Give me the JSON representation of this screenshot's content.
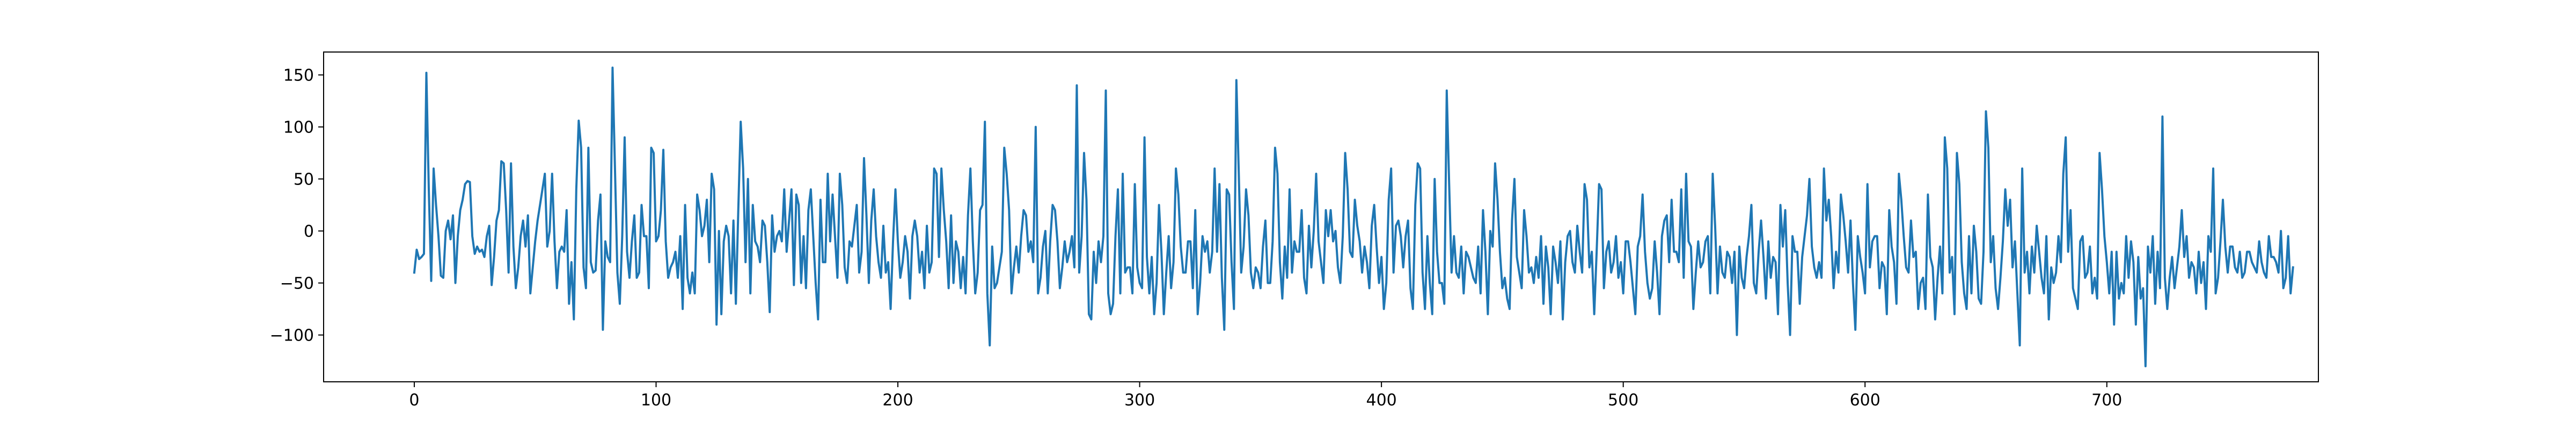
{
  "chart_data": {
    "type": "line",
    "title": "",
    "xlabel": "",
    "ylabel": "",
    "xlim": [
      -37.5,
      787.5
    ],
    "ylim": [
      -145,
      172
    ],
    "xticks": [
      0,
      100,
      200,
      300,
      400,
      500,
      600,
      700
    ],
    "yticks": [
      -100,
      -50,
      0,
      50,
      100,
      150
    ],
    "grid": false,
    "legend": "none",
    "colors": {
      "line": "#1f77b4",
      "axes": "#000000",
      "background": "#ffffff"
    },
    "series": [
      {
        "x_start": 0,
        "x_step": 1,
        "values": [
          -40,
          -18,
          -27,
          -25,
          -22,
          152,
          40,
          -48,
          60,
          25,
          -5,
          -43,
          -45,
          0,
          10,
          -8,
          15,
          -50,
          -5,
          20,
          30,
          45,
          48,
          47,
          -5,
          -22,
          -15,
          -20,
          -18,
          -25,
          -5,
          5,
          -52,
          -25,
          10,
          20,
          67,
          65,
          20,
          -40,
          65,
          -15,
          -55,
          -35,
          -5,
          10,
          -15,
          15,
          -60,
          -35,
          -10,
          10,
          25,
          40,
          55,
          -15,
          0,
          55,
          -10,
          -55,
          -20,
          -15,
          -20,
          20,
          -70,
          -30,
          -85,
          40,
          106,
          80,
          -35,
          -55,
          80,
          -30,
          -40,
          -38,
          10,
          35,
          -95,
          -10,
          -25,
          -30,
          157,
          60,
          -40,
          -70,
          -5,
          90,
          -20,
          -45,
          -10,
          15,
          -45,
          -40,
          25,
          -5,
          -5,
          -55,
          80,
          75,
          -10,
          -5,
          20,
          78,
          -10,
          -45,
          -35,
          -30,
          -20,
          -45,
          -5,
          -75,
          25,
          -45,
          -60,
          -40,
          -60,
          35,
          20,
          -5,
          5,
          30,
          -30,
          55,
          40,
          -90,
          0,
          -80,
          -10,
          5,
          -5,
          -60,
          10,
          -70,
          20,
          105,
          60,
          -30,
          50,
          -60,
          25,
          -10,
          -15,
          -30,
          10,
          5,
          -30,
          -78,
          15,
          -20,
          -5,
          0,
          -10,
          40,
          -20,
          10,
          40,
          -52,
          35,
          25,
          -50,
          -5,
          -55,
          20,
          40,
          -5,
          -50,
          -85,
          30,
          -30,
          -30,
          55,
          -10,
          35,
          -5,
          -45,
          55,
          25,
          -35,
          -50,
          -10,
          -15,
          5,
          25,
          -40,
          -20,
          70,
          15,
          -50,
          10,
          40,
          -5,
          -30,
          -45,
          5,
          -40,
          -30,
          -75,
          -10,
          40,
          -10,
          -45,
          -30,
          -5,
          -20,
          -65,
          -5,
          10,
          -5,
          -40,
          -20,
          -55,
          5,
          -40,
          -30,
          60,
          55,
          -25,
          60,
          20,
          -10,
          -55,
          15,
          -50,
          -10,
          -20,
          -55,
          -25,
          -60,
          15,
          60,
          -10,
          -60,
          -40,
          20,
          25,
          105,
          -60,
          -110,
          -15,
          -55,
          -50,
          -35,
          -20,
          80,
          55,
          20,
          -60,
          -35,
          -15,
          -40,
          -5,
          20,
          15,
          -20,
          -10,
          -30,
          100,
          -60,
          -45,
          -15,
          0,
          -60,
          -10,
          25,
          20,
          -10,
          -55,
          -35,
          -10,
          -30,
          -20,
          -5,
          -35,
          140,
          -40,
          -5,
          75,
          30,
          -80,
          -85,
          -20,
          -50,
          -10,
          -30,
          -5,
          135,
          -60,
          -80,
          -70,
          -5,
          40,
          -60,
          55,
          -40,
          -35,
          -35,
          -60,
          45,
          -35,
          -50,
          -55,
          90,
          -25,
          -60,
          -25,
          -80,
          -50,
          25,
          -20,
          -80,
          -40,
          -5,
          -55,
          -30,
          60,
          35,
          -15,
          -40,
          -40,
          -10,
          -10,
          -55,
          20,
          -80,
          -50,
          -5,
          -20,
          -10,
          -40,
          -20,
          60,
          -20,
          45,
          -45,
          -95,
          40,
          35,
          -30,
          -75,
          145,
          55,
          -40,
          -15,
          40,
          15,
          -40,
          -55,
          -35,
          -40,
          -55,
          -15,
          10,
          -50,
          -50,
          -10,
          80,
          55,
          -30,
          -65,
          -15,
          -45,
          40,
          -40,
          -10,
          -20,
          -20,
          20,
          -45,
          -60,
          5,
          -35,
          0,
          55,
          -10,
          -30,
          -50,
          20,
          -5,
          20,
          -10,
          0,
          -35,
          -50,
          -5,
          75,
          40,
          -20,
          -25,
          30,
          5,
          -10,
          -40,
          -15,
          -30,
          -55,
          5,
          25,
          -15,
          -50,
          -25,
          -75,
          -50,
          30,
          60,
          -40,
          5,
          10,
          -5,
          -35,
          -5,
          10,
          -55,
          -75,
          25,
          65,
          60,
          -40,
          -75,
          -5,
          -50,
          -80,
          50,
          -20,
          -50,
          -50,
          -70,
          135,
          45,
          -40,
          -5,
          -40,
          -45,
          -15,
          -60,
          -20,
          -25,
          -35,
          -45,
          -50,
          -15,
          -60,
          20,
          -20,
          -80,
          0,
          -15,
          65,
          30,
          -20,
          -55,
          -45,
          -65,
          -75,
          10,
          50,
          -25,
          -40,
          -55,
          20,
          -5,
          -40,
          -35,
          -50,
          -25,
          -45,
          -5,
          -70,
          -15,
          -35,
          -80,
          -15,
          -30,
          -50,
          -10,
          -85,
          -30,
          -5,
          0,
          -30,
          -40,
          5,
          -20,
          -40,
          45,
          30,
          -35,
          -20,
          -80,
          -20,
          45,
          40,
          -55,
          -20,
          -10,
          -40,
          -30,
          -5,
          -45,
          -30,
          -60,
          -10,
          -10,
          -30,
          -55,
          -80,
          -15,
          -5,
          35,
          -20,
          -50,
          -65,
          -55,
          -10,
          -40,
          -80,
          -5,
          10,
          15,
          -30,
          30,
          -20,
          -20,
          -30,
          40,
          -45,
          55,
          -10,
          -15,
          -75,
          -40,
          -10,
          -35,
          -30,
          -10,
          -5,
          -60,
          55,
          5,
          -60,
          -15,
          -40,
          -45,
          -20,
          -25,
          -50,
          -20,
          -100,
          -15,
          -45,
          -55,
          -25,
          -5,
          25,
          -50,
          -60,
          -20,
          10,
          -25,
          -65,
          -10,
          -45,
          -25,
          -30,
          -80,
          25,
          -15,
          20,
          -50,
          -100,
          -5,
          -20,
          -20,
          -70,
          -25,
          -5,
          15,
          50,
          -15,
          -35,
          -45,
          -30,
          -45,
          60,
          10,
          30,
          -5,
          -55,
          -20,
          -40,
          35,
          15,
          -10,
          -40,
          10,
          -50,
          -95,
          -5,
          -25,
          -40,
          -60,
          45,
          -35,
          -10,
          -5,
          -5,
          -55,
          -30,
          -35,
          -80,
          20,
          -15,
          -30,
          -70,
          55,
          30,
          -5,
          -35,
          -40,
          10,
          -25,
          -20,
          -75,
          -50,
          -45,
          -75,
          35,
          -25,
          -35,
          -85,
          -45,
          -15,
          -60,
          90,
          60,
          -40,
          -25,
          -80,
          75,
          45,
          -30,
          -60,
          -75,
          -5,
          -60,
          5,
          -20,
          -65,
          -70,
          -20,
          115,
          80,
          -30,
          -5,
          -55,
          -75,
          -45,
          -10,
          40,
          5,
          30,
          -35,
          -10,
          -60,
          -110,
          60,
          -40,
          -20,
          -60,
          -15,
          -40,
          5,
          -20,
          -45,
          -60,
          -5,
          -85,
          -35,
          -50,
          -40,
          -5,
          -30,
          55,
          90,
          -20,
          20,
          -55,
          -65,
          -75,
          -10,
          -5,
          -45,
          -40,
          -15,
          -60,
          -45,
          -65,
          75,
          40,
          -5,
          -30,
          -60,
          -20,
          -90,
          -20,
          -65,
          -50,
          -60,
          -5,
          -45,
          -10,
          -30,
          -90,
          -25,
          -65,
          -55,
          -130,
          -15,
          -40,
          -5,
          -70,
          -20,
          -55,
          110,
          -45,
          -75,
          -45,
          -25,
          -55,
          -35,
          -15,
          20,
          -25,
          -5,
          -45,
          -30,
          -35,
          -60,
          -20,
          -50,
          -30,
          -75,
          -5,
          -20,
          60,
          -60,
          -45,
          -10,
          30,
          -15,
          -40,
          -15,
          -15,
          -35,
          -40,
          -20,
          -45,
          -40,
          -20,
          -20,
          -30,
          -35,
          -40,
          -10,
          -30,
          -40,
          -45,
          -5,
          -25,
          -25,
          -30,
          -40,
          0,
          -55,
          -45,
          -5,
          -60,
          -35
        ]
      }
    ]
  }
}
